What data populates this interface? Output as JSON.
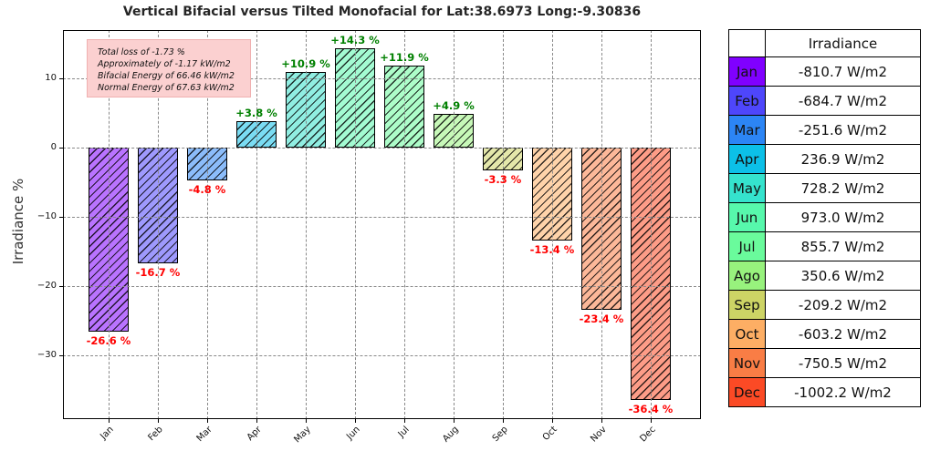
{
  "title": "Vertical Bifacial versus Tilted Monofacial for Lat:38.6973 Long:-9.30836",
  "ylabel": "Irradiance %",
  "annotation": {
    "lines": [
      "Total loss of -1.73 %",
      "Approximately of -1.17 kW/m2",
      "Bifacial Energy of 66.46 kW/m2",
      "Normal Energy of 67.63 kW/m2"
    ],
    "bg_color": "#fbd0d0"
  },
  "chart_data": {
    "type": "bar",
    "categories": [
      "Jan",
      "Feb",
      "Mar",
      "Apr",
      "May",
      "Jun",
      "Jul",
      "Aug",
      "Sep",
      "Oct",
      "Nov",
      "Dec"
    ],
    "values": [
      -26.6,
      -16.7,
      -4.8,
      3.8,
      10.9,
      14.3,
      11.9,
      4.9,
      -3.3,
      -13.4,
      -23.4,
      -36.4
    ],
    "bar_labels": [
      "-26.6 %",
      "-16.7 %",
      "-4.8 %",
      "+3.8 %",
      "+10.9 %",
      "+14.3 %",
      "+11.9 %",
      "+4.9 %",
      "-3.3 %",
      "-13.4 %",
      "-23.4 %",
      "-36.4 %"
    ],
    "bar_colors": [
      "#b973ff",
      "#9e99fd",
      "#8bbcfa",
      "#7adcf3",
      "#90eee2",
      "#a3fbd2",
      "#adfdc9",
      "#c7f8b8",
      "#e4e7aa",
      "#fed3aa",
      "#fcb899",
      "#fd9c87"
    ],
    "hatch": "/",
    "grid": true,
    "ylabel": "Irradiance %",
    "xlabel": "",
    "ylim": [
      -39.2,
      17.0
    ],
    "yticks": [
      {
        "v": 10,
        "label": "10"
      },
      {
        "v": 0,
        "label": "0"
      },
      {
        "v": -10,
        "label": "−10"
      },
      {
        "v": -20,
        "label": "−20"
      },
      {
        "v": -30,
        "label": "−30"
      }
    ],
    "positive_label_color": "#008000",
    "negative_label_color": "#ff0000"
  },
  "side_table": {
    "header": "Irradiance",
    "rows": [
      {
        "month": "Jan",
        "value": "-810.7 W/m2",
        "color": "#8000ff"
      },
      {
        "month": "Feb",
        "value": "-684.7 W/m2",
        "color": "#4e46fb"
      },
      {
        "month": "Mar",
        "value": "-251.6 W/m2",
        "color": "#2c85f5"
      },
      {
        "month": "Apr",
        "value": "236.9 W/m2",
        "color": "#0cc0e8"
      },
      {
        "month": "May",
        "value": "728.2 W/m2",
        "color": "#35e3cd"
      },
      {
        "month": "Jun",
        "value": "973.0 W/m2",
        "color": "#57f8ac"
      },
      {
        "month": "Jul",
        "value": "855.7 W/m2",
        "color": "#6afb9c"
      },
      {
        "month": "Ago",
        "value": "350.6 W/m2",
        "color": "#98f27d"
      },
      {
        "month": "Sep",
        "value": "-209.2 W/m2",
        "color": "#cdd465"
      },
      {
        "month": "Oct",
        "value": "-603.2 W/m2",
        "color": "#fdae64"
      },
      {
        "month": "Nov",
        "value": "-750.5 W/m2",
        "color": "#f97d45"
      },
      {
        "month": "Dec",
        "value": "-1002.2 W/m2",
        "color": "#fb4a25"
      }
    ]
  }
}
